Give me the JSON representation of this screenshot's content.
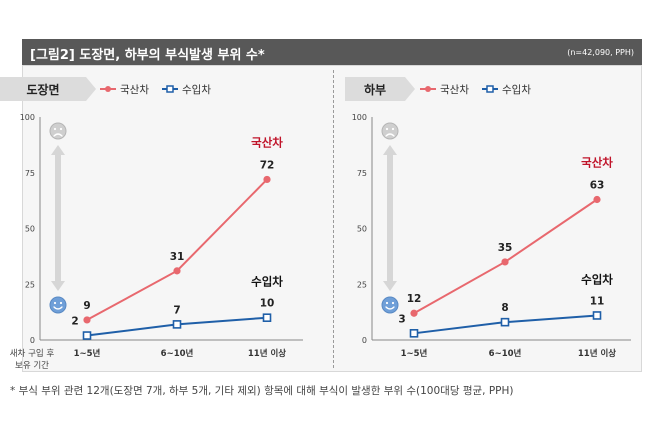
{
  "header": {
    "title": "[그림2] 도장면, 하부의 부식발생 부위 수*",
    "note": "(n=42,090, PPH)"
  },
  "footnote": "* 부식 부위 관련 12개(도장면 7개, 하부 5개, 기타 제외) 항목에 대해 부식이 발생한 부위 수(100대당 평균, PPH)",
  "colors": {
    "domestic": "#e8686e",
    "imported": "#1f5fa8",
    "domestic_label": "#c0142a"
  },
  "icons": {
    "top": "sad-face-icon",
    "bottom": "happy-face-icon",
    "axis": "double-arrow-icon"
  },
  "chart_data": [
    {
      "type": "line",
      "panel_label": "도장면",
      "categories": [
        "1~5년",
        "6~10년",
        "11년 이상"
      ],
      "x_axis_caption": [
        "새차 구입 후",
        "보유 기간"
      ],
      "yticks": [
        0,
        25,
        50,
        75,
        100
      ],
      "ylim": [
        0,
        100
      ],
      "legend_placement": "top-left",
      "grid": false,
      "series": [
        {
          "name": "국산차",
          "key": "domestic",
          "values": [
            9,
            31,
            72
          ],
          "end_label": "국산차"
        },
        {
          "name": "수입차",
          "key": "imported",
          "values": [
            2,
            7,
            10
          ],
          "end_label": "수입차"
        }
      ]
    },
    {
      "type": "line",
      "panel_label": "하부",
      "categories": [
        "1~5년",
        "6~10년",
        "11년 이상"
      ],
      "yticks": [
        0,
        25,
        50,
        75,
        100
      ],
      "ylim": [
        0,
        100
      ],
      "legend_placement": "top-left",
      "grid": false,
      "series": [
        {
          "name": "국산차",
          "key": "domestic",
          "values": [
            12,
            35,
            63
          ],
          "end_label": "국산차"
        },
        {
          "name": "수입차",
          "key": "imported",
          "values": [
            3,
            8,
            11
          ],
          "end_label": "수입차"
        }
      ]
    }
  ]
}
